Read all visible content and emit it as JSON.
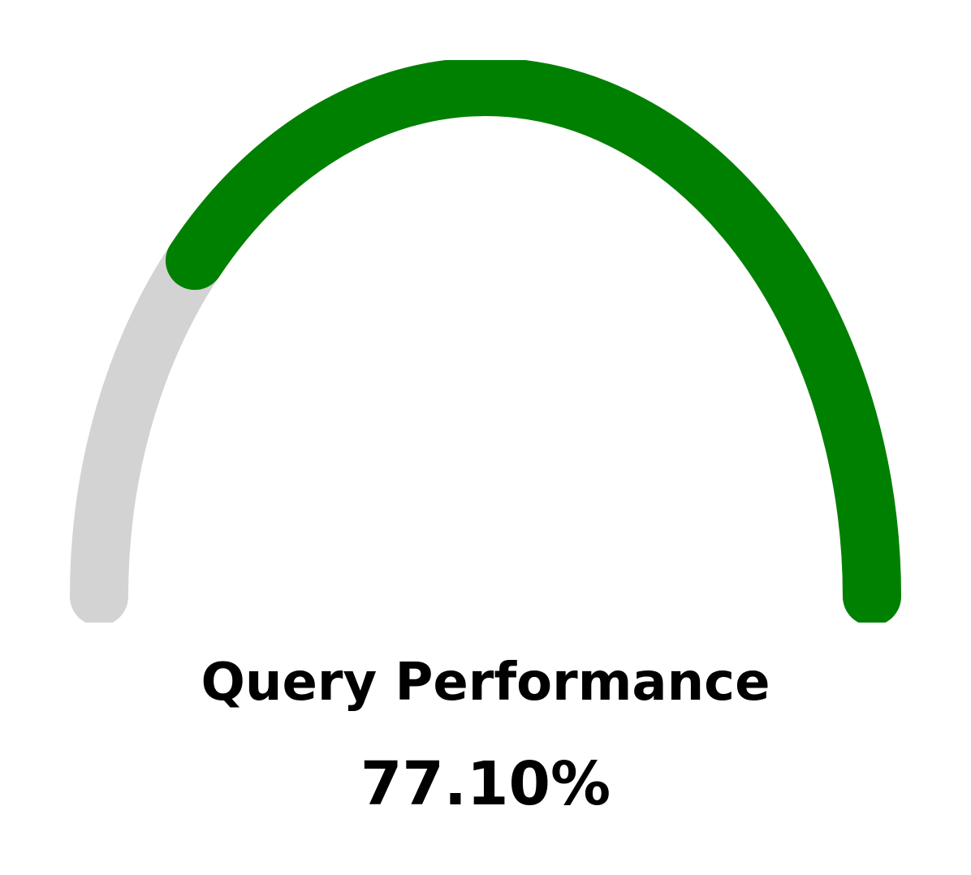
{
  "chart_data": {
    "type": "gauge",
    "title": "Query Performance",
    "value_label": "77.10%",
    "value": 77.1,
    "range": [
      0,
      100
    ],
    "colors": {
      "fill": "#008000",
      "track": "#d3d3d3"
    }
  }
}
